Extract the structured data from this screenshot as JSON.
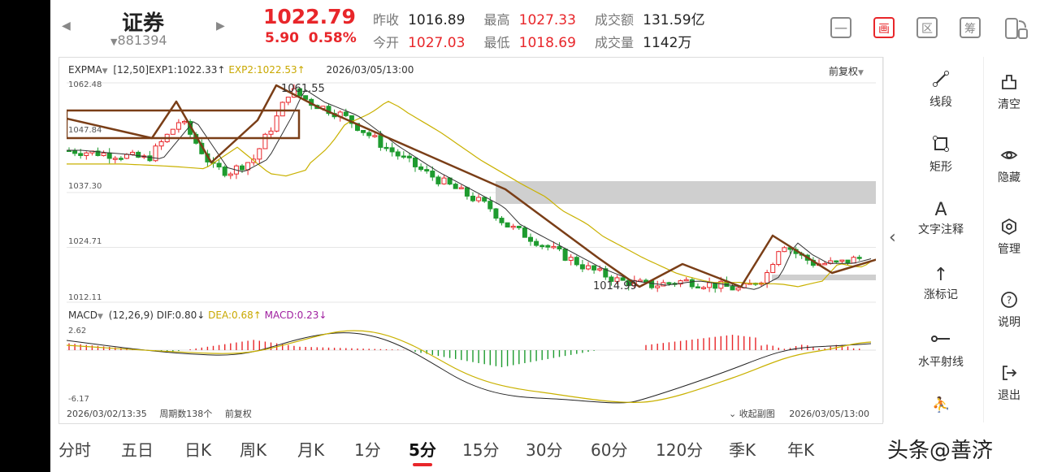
{
  "header": {
    "prev_icon": "chevron-left-icon",
    "next_icon": "chevron-right-icon",
    "title": "证券",
    "code": "881394",
    "price": "1022.79",
    "change": "5.90",
    "change_pct": "0.58%",
    "quotes": {
      "prev_close_label": "昨收",
      "prev_close": "1016.89",
      "high_label": "最高",
      "high": "1027.33",
      "amount_label": "成交额",
      "amount": "131.59亿",
      "open_label": "今开",
      "open": "1027.03",
      "low_label": "最低",
      "low": "1018.69",
      "volume_label": "成交量",
      "volume": "1142万"
    },
    "tools": [
      {
        "icon": "minus-box-icon",
        "label": "一"
      },
      {
        "icon": "draw-icon",
        "label": "画"
      },
      {
        "icon": "zone-icon",
        "label": "区"
      },
      {
        "icon": "chip-icon",
        "label": "筹"
      },
      {
        "icon": "rotate-screen-icon",
        "label": ""
      }
    ]
  },
  "main_legend": {
    "indicator": "EXPMA",
    "params": "[12,50]",
    "exp1": "EXP1:1022.33↑",
    "exp2": "EXP2:1022.53↑",
    "time": "2026/03/05/13:00",
    "adjust": "前复权"
  },
  "price_axis": [
    "1062.48",
    "1037.30",
    "1024.71",
    "1012.11"
  ],
  "price_annotations": {
    "high_label": "1061.55",
    "low_label": "1014.99",
    "left_label": "1047.84"
  },
  "macd_legend": {
    "indicator": "MACD",
    "params": "(12,26,9)",
    "dif": "DIF:0.80↓",
    "dea": "DEA:0.68↑",
    "macd": "MACD:0.23↓"
  },
  "macd_axis": [
    "2.62",
    "-6.17"
  ],
  "footer": {
    "start_time": "2026/03/02/13:35",
    "period_count": "周期数138个",
    "adjust": "前复权",
    "collapse": "收起副图",
    "end_time": "2026/03/05/13:00"
  },
  "draw_tools": [
    {
      "icon": "line-segment-icon",
      "label": "线段"
    },
    {
      "icon": "rectangle-icon",
      "label": "矩形"
    },
    {
      "icon": "text-note-icon",
      "label": "文字注释"
    },
    {
      "icon": "arrow-up-icon",
      "label": "涨标记"
    },
    {
      "icon": "horizontal-ray-icon",
      "label": "水平射线"
    }
  ],
  "side_tools": [
    {
      "icon": "clear-icon",
      "label": "清空"
    },
    {
      "icon": "eye-icon",
      "label": "隐藏"
    },
    {
      "icon": "manage-icon",
      "label": "管理"
    },
    {
      "icon": "help-icon",
      "label": "说明"
    },
    {
      "icon": "exit-icon",
      "label": "退出"
    }
  ],
  "periods": [
    "分时",
    "五日",
    "日K",
    "周K",
    "月K",
    "1分",
    "5分",
    "15分",
    "30分",
    "60分",
    "120分",
    "季K",
    "年K"
  ],
  "active_period": "5分",
  "watermark": "头条@善济",
  "colors": {
    "up": "#e8262a",
    "down": "#1e9b2f",
    "exp1": "#333333",
    "exp2": "#c9b100",
    "trend": "#7a3e17",
    "zone": "#cfcfcf"
  }
}
